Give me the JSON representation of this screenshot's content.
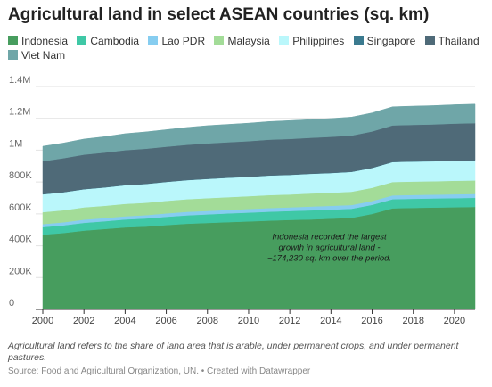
{
  "title": "Agricultural land in select ASEAN countries (sq. km)",
  "legend": {
    "labels": [
      "Indonesia",
      "Cambodia",
      "Lao PDR",
      "Malaysia",
      "Philippines",
      "Singapore",
      "Thailand",
      "Viet Nam"
    ]
  },
  "note": "Agricultural land refers to the share of land area that is arable, under permanent crops, and under permanent pastures.",
  "source": "Source: Food and Agricultural Organization, UN. • Created with Datawrapper",
  "chart_data": {
    "type": "area",
    "stacked": true,
    "title": "Agricultural land in select ASEAN countries (sq. km)",
    "x": [
      2000,
      2001,
      2002,
      2003,
      2004,
      2005,
      2006,
      2007,
      2008,
      2009,
      2010,
      2011,
      2012,
      2013,
      2014,
      2015,
      2016,
      2017,
      2018,
      2019,
      2020,
      2021
    ],
    "xticks": [
      2000,
      2002,
      2004,
      2006,
      2008,
      2010,
      2012,
      2014,
      2016,
      2018,
      2020
    ],
    "xtick_labels": [
      "2000",
      "2002",
      "2004",
      "2006",
      "2008",
      "2010",
      "2012",
      "2014",
      "2016",
      "2018",
      "2020"
    ],
    "xlim": [
      2000,
      2021
    ],
    "ylim": [
      0,
      1400000
    ],
    "yticks": [
      0,
      200000,
      400000,
      600000,
      800000,
      1000000,
      1200000,
      1400000
    ],
    "ytick_labels": [
      "0",
      "200K",
      "400K",
      "600K",
      "800K",
      "1M",
      "1.2M",
      "1.4M"
    ],
    "grid": true,
    "legend_position": "top",
    "annotation": {
      "text": [
        "Indonesia recorded the largest",
        "growth in agricultural land -",
        "~174,230 sq. km over the period."
      ],
      "x": 2016,
      "y": 440000
    },
    "series": [
      {
        "name": "Indonesia",
        "color": "#479d5e",
        "values": [
          470000,
          480000,
          495000,
          505000,
          515000,
          520000,
          530000,
          538000,
          543000,
          548000,
          553000,
          558000,
          562000,
          565000,
          570000,
          575000,
          600000,
          635000,
          638000,
          640000,
          642000,
          644000
        ]
      },
      {
        "name": "Cambodia",
        "color": "#3fc8a6",
        "values": [
          47000,
          48000,
          49000,
          49000,
          50000,
          51000,
          52000,
          53000,
          54000,
          55000,
          55000,
          56000,
          56000,
          57000,
          57000,
          57000,
          57000,
          57000,
          57000,
          57000,
          57000,
          57000
        ]
      },
      {
        "name": "Lao PDR",
        "color": "#86cdf0",
        "values": [
          19000,
          19000,
          20000,
          20000,
          20000,
          21000,
          21000,
          22000,
          22000,
          22000,
          23000,
          23000,
          23000,
          24000,
          24000,
          24000,
          24000,
          24000,
          24000,
          24000,
          24000,
          24000
        ]
      },
      {
        "name": "Malaysia",
        "color": "#a3dc98",
        "values": [
          75000,
          76000,
          77000,
          77000,
          78000,
          78000,
          79000,
          79000,
          80000,
          80000,
          80000,
          81000,
          81000,
          82000,
          82000,
          83000,
          83000,
          84000,
          84000,
          84000,
          85000,
          85000
        ]
      },
      {
        "name": "Philippines",
        "color": "#baf7fb",
        "values": [
          112000,
          113000,
          114000,
          115000,
          117000,
          118000,
          119000,
          120000,
          121000,
          122000,
          122000,
          123000,
          123000,
          124000,
          124000,
          125000,
          125000,
          126000,
          126000,
          126000,
          127000,
          127000
        ]
      },
      {
        "name": "Singapore",
        "color": "#3b7a8f",
        "values": [
          1000,
          1000,
          1000,
          1000,
          1000,
          1000,
          1000,
          1000,
          1000,
          1000,
          1000,
          1000,
          1000,
          1000,
          1000,
          1000,
          1000,
          1000,
          1000,
          1000,
          1000,
          1000
        ]
      },
      {
        "name": "Thailand",
        "color": "#4f6a78",
        "values": [
          207000,
          213000,
          216000,
          218000,
          219000,
          220000,
          220000,
          221000,
          222000,
          222000,
          223000,
          224000,
          225000,
          225000,
          226000,
          227000,
          228000,
          229000,
          229000,
          230000,
          231000,
          232000
        ]
      },
      {
        "name": "Viet Nam",
        "color": "#6fa6a8",
        "values": [
          94000,
          95000,
          98000,
          100000,
          104000,
          106000,
          107000,
          109000,
          111000,
          112000,
          113000,
          114000,
          115000,
          114000,
          115000,
          116000,
          116000,
          117000,
          118000,
          118000,
          119000,
          119000
        ]
      }
    ]
  }
}
